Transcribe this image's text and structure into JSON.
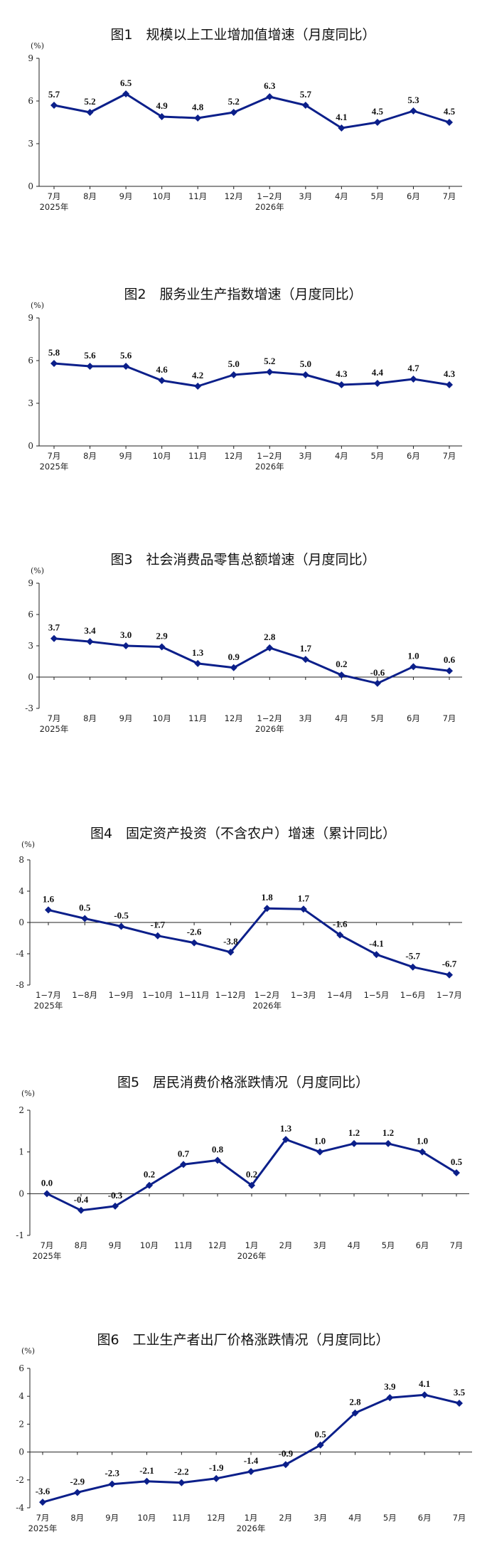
{
  "chart_data": [
    {
      "type": "line",
      "title": "图1　规模以上工业增加值增速（月度同比）",
      "unit": "(%)",
      "categories": [
        "7月",
        "8月",
        "9月",
        "10月",
        "11月",
        "12月",
        "1−2月",
        "3月",
        "4月",
        "5月",
        "6月",
        "7月"
      ],
      "year_labels": [
        {
          "index": 0,
          "text": "2025年"
        },
        {
          "index": 6,
          "text": "2026年"
        }
      ],
      "values": [
        5.7,
        5.2,
        6.5,
        4.9,
        4.8,
        5.2,
        6.3,
        5.7,
        4.1,
        4.5,
        5.3,
        4.5
      ],
      "value_labels": [
        "5.7",
        "5.2",
        "6.5",
        "4.9",
        "4.8",
        "5.2",
        "6.3",
        "5.7",
        "4.1",
        "4.5",
        "5.3",
        "4.5"
      ],
      "ylim": [
        0,
        9
      ],
      "yticks": [
        0,
        3,
        6,
        9
      ],
      "color": "#0b1f8a"
    },
    {
      "type": "line",
      "title": "图2　服务业生产指数增速（月度同比）",
      "unit": "(%)",
      "categories": [
        "7月",
        "8月",
        "9月",
        "10月",
        "11月",
        "12月",
        "1−2月",
        "3月",
        "4月",
        "5月",
        "6月",
        "7月"
      ],
      "year_labels": [
        {
          "index": 0,
          "text": "2025年"
        },
        {
          "index": 6,
          "text": "2026年"
        }
      ],
      "values": [
        5.8,
        5.6,
        5.6,
        4.6,
        4.2,
        5.0,
        5.2,
        5.0,
        4.3,
        4.4,
        4.7,
        4.3
      ],
      "value_labels": [
        "5.8",
        "5.6",
        "5.6",
        "4.6",
        "4.2",
        "5.0",
        "5.2",
        "5.0",
        "4.3",
        "4.4",
        "4.7",
        "4.3"
      ],
      "ylim": [
        0,
        9
      ],
      "yticks": [
        0,
        3,
        6,
        9
      ],
      "color": "#0b1f8a"
    },
    {
      "type": "line",
      "title": "图3　社会消费品零售总额增速（月度同比）",
      "unit": "(%)",
      "categories": [
        "7月",
        "8月",
        "9月",
        "10月",
        "11月",
        "12月",
        "1−2月",
        "3月",
        "4月",
        "5月",
        "6月",
        "7月"
      ],
      "year_labels": [
        {
          "index": 0,
          "text": "2025年"
        },
        {
          "index": 6,
          "text": "2026年"
        }
      ],
      "values": [
        3.7,
        3.4,
        3.0,
        2.9,
        1.3,
        0.9,
        2.8,
        1.7,
        0.2,
        -0.6,
        1.0,
        0.6
      ],
      "value_labels": [
        "3.7",
        "3.4",
        "3.0",
        "2.9",
        "1.3",
        "0.9",
        "2.8",
        "1.7",
        "0.2",
        "-0.6",
        "1.0",
        "0.6"
      ],
      "ylim": [
        -3,
        9
      ],
      "yticks": [
        -3,
        0,
        3,
        6,
        9
      ],
      "color": "#0b1f8a"
    },
    {
      "type": "line",
      "title": "图4　固定资产投资（不含农户）增速（累计同比）",
      "unit": "(%)",
      "categories": [
        "1−7月",
        "1−8月",
        "1−9月",
        "1−10月",
        "1−11月",
        "1−12月",
        "1−2月",
        "1−3月",
        "1−4月",
        "1−5月",
        "1−6月",
        "1−7月"
      ],
      "year_labels": [
        {
          "index": 0,
          "text": "2025年"
        },
        {
          "index": 6,
          "text": "2026年"
        }
      ],
      "values": [
        1.6,
        0.5,
        -0.5,
        -1.7,
        -2.6,
        -3.8,
        1.8,
        1.7,
        -1.6,
        -4.1,
        -5.7,
        -6.7
      ],
      "value_labels": [
        "1.6",
        "0.5",
        "-0.5",
        "-1.7",
        "-2.6",
        "-3.8",
        "1.8",
        "1.7",
        "-1.6",
        "-4.1",
        "-5.7",
        "-6.7"
      ],
      "ylim": [
        -8,
        8
      ],
      "yticks": [
        -8,
        -4,
        0,
        4,
        8
      ],
      "color": "#0b1f8a"
    },
    {
      "type": "line",
      "title": "图5　居民消费价格涨跌情况（月度同比）",
      "unit": "(%)",
      "categories": [
        "7月",
        "8月",
        "9月",
        "10月",
        "11月",
        "12月",
        "1月",
        "2月",
        "3月",
        "4月",
        "5月",
        "6月",
        "7月"
      ],
      "year_labels": [
        {
          "index": 0,
          "text": "2025年"
        },
        {
          "index": 6,
          "text": "2026年"
        }
      ],
      "values": [
        0.0,
        -0.4,
        -0.3,
        0.2,
        0.7,
        0.8,
        0.2,
        1.3,
        1.0,
        1.2,
        1.2,
        1.0,
        0.5
      ],
      "value_labels": [
        "0.0",
        "-0.4",
        "-0.3",
        "0.2",
        "0.7",
        "0.8",
        "0.2",
        "1.3",
        "1.0",
        "1.2",
        "1.2",
        "1.0",
        "0.5"
      ],
      "ylim": [
        -1,
        2
      ],
      "yticks": [
        -1,
        0,
        1,
        2
      ],
      "color": "#0b1f8a"
    },
    {
      "type": "line",
      "title": "图6　工业生产者出厂价格涨跌情况（月度同比）",
      "unit": "(%)",
      "categories": [
        "7月",
        "8月",
        "9月",
        "10月",
        "11月",
        "12月",
        "1月",
        "2月",
        "3月",
        "4月",
        "5月",
        "6月",
        "7月"
      ],
      "year_labels": [
        {
          "index": 0,
          "text": "2025年"
        },
        {
          "index": 6,
          "text": "2026年"
        }
      ],
      "values": [
        -3.6,
        -2.9,
        -2.3,
        -2.1,
        -2.2,
        -1.9,
        -1.4,
        -0.9,
        0.5,
        2.8,
        3.9,
        4.1,
        3.5
      ],
      "value_labels": [
        "-3.6",
        "-2.9",
        "-2.3",
        "-2.1",
        "-2.2",
        "-1.9",
        "-1.4",
        "-0.9",
        "0.5",
        "2.8",
        "3.9",
        "4.1",
        "3.5"
      ],
      "ylim": [
        -4,
        6
      ],
      "yticks": [
        -4,
        -2,
        0,
        2,
        4,
        6
      ],
      "color": "#0b1f8a"
    }
  ]
}
